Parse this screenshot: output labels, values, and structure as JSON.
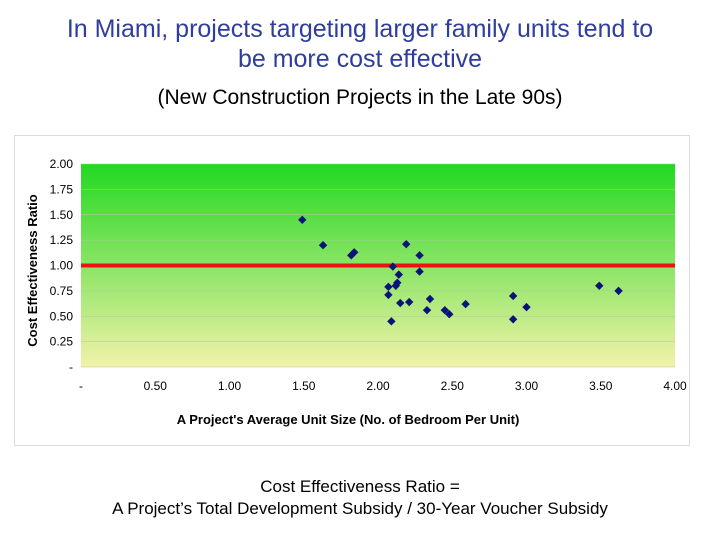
{
  "slide": {
    "title_line1": "In Miami, projects targeting larger family units tend to",
    "title_line2": "be more cost effective",
    "subtitle": "(New Construction Projects in the Late 90s)",
    "formula_line1": "Cost Effectiveness Ratio =",
    "formula_line2": "A Project’s Total Development Subsidy / 30-Year Voucher Subsidy"
  },
  "chart_data": {
    "type": "scatter",
    "xlabel": "A Project's Average Unit Size (No. of Bedroom Per Unit)",
    "ylabel": "Cost Effectiveness Ratio",
    "xlim": [
      0,
      4
    ],
    "ylim": [
      0,
      2
    ],
    "x_ticks": [
      0,
      0.5,
      1,
      1.5,
      2,
      2.5,
      3,
      3.5,
      4
    ],
    "x_tick_labels": [
      "-",
      "0.50",
      "1.00",
      "1.50",
      "2.00",
      "2.50",
      "3.00",
      "3.50",
      "4.00"
    ],
    "y_ticks": [
      0,
      0.25,
      0.5,
      0.75,
      1,
      1.25,
      1.5,
      1.75,
      2
    ],
    "y_tick_labels": [
      "-",
      "0.25",
      "0.50",
      "0.75",
      "1.00",
      "1.25",
      "1.50",
      "1.75",
      "2.00"
    ],
    "reference_line": {
      "y": 1.0,
      "color": "#ee1111"
    },
    "background_gradient": [
      "#22d822",
      "#f2f2a8"
    ],
    "marker_color": "#0a1478",
    "points": [
      {
        "x": 1.49,
        "y": 1.45
      },
      {
        "x": 1.63,
        "y": 1.2
      },
      {
        "x": 1.82,
        "y": 1.1
      },
      {
        "x": 1.84,
        "y": 1.13
      },
      {
        "x": 2.07,
        "y": 0.79
      },
      {
        "x": 2.07,
        "y": 0.71
      },
      {
        "x": 2.09,
        "y": 0.45
      },
      {
        "x": 2.1,
        "y": 0.99
      },
      {
        "x": 2.12,
        "y": 0.8
      },
      {
        "x": 2.13,
        "y": 0.83
      },
      {
        "x": 2.14,
        "y": 0.91
      },
      {
        "x": 2.15,
        "y": 0.63
      },
      {
        "x": 2.19,
        "y": 1.21
      },
      {
        "x": 2.21,
        "y": 0.64
      },
      {
        "x": 2.28,
        "y": 1.1
      },
      {
        "x": 2.28,
        "y": 0.94
      },
      {
        "x": 2.33,
        "y": 0.56
      },
      {
        "x": 2.35,
        "y": 0.67
      },
      {
        "x": 2.45,
        "y": 0.56
      },
      {
        "x": 2.48,
        "y": 0.52
      },
      {
        "x": 2.59,
        "y": 0.62
      },
      {
        "x": 2.91,
        "y": 0.7
      },
      {
        "x": 2.91,
        "y": 0.47
      },
      {
        "x": 3.0,
        "y": 0.59
      },
      {
        "x": 3.49,
        "y": 0.8
      },
      {
        "x": 3.62,
        "y": 0.75
      }
    ]
  }
}
